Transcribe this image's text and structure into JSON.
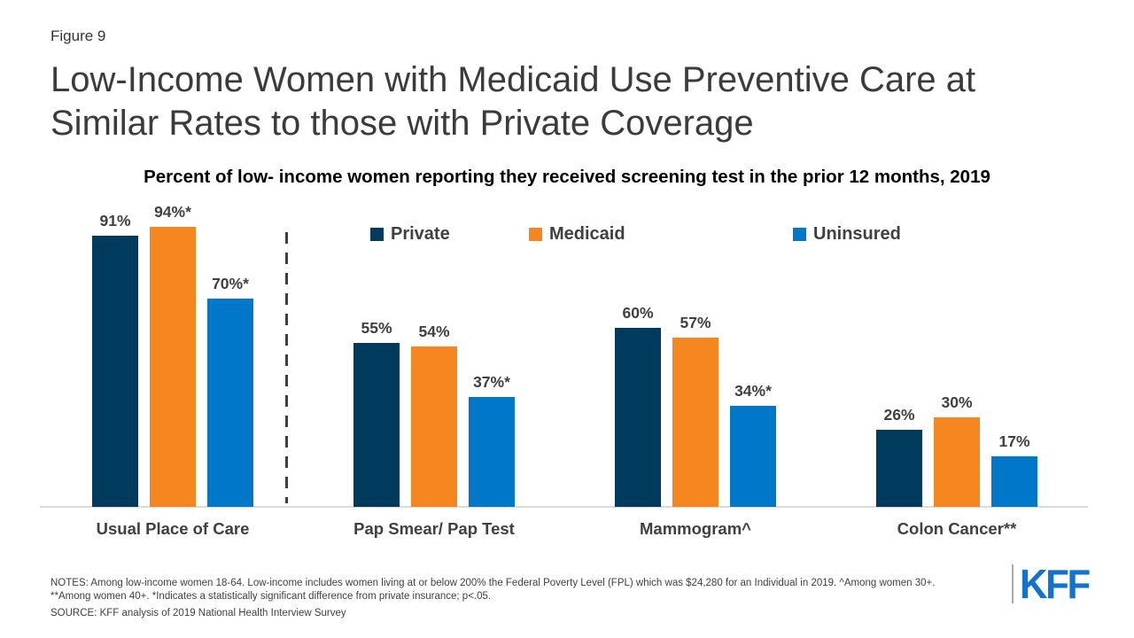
{
  "header": {
    "figure_label": "Figure 9",
    "title_line1": "Low-Income Women with Medicaid Use Preventive Care at",
    "title_line2": "Similar Rates to those with Private Coverage",
    "subtitle": "Percent of low- income women reporting they received screening test in the prior 12 months, 2019"
  },
  "chart_data": {
    "type": "bar",
    "title": "Percent of low- income women reporting they received screening test in the prior 12 months, 2019",
    "categories": [
      "Usual Place of Care",
      "Pap Smear/ Pap Test",
      "Mammogram^",
      "Colon Cancer**"
    ],
    "series": [
      {
        "name": "Private",
        "color": "#003a5d",
        "values": [
          91,
          55,
          60,
          26
        ],
        "labels": [
          "91%",
          "55%",
          "60%",
          "26%"
        ]
      },
      {
        "name": "Medicaid",
        "color": "#f6861f",
        "values": [
          94,
          54,
          57,
          30
        ],
        "labels": [
          "94%*",
          "54%",
          "57%",
          "30%"
        ]
      },
      {
        "name": "Uninsured",
        "color": "#0077c8",
        "values": [
          70,
          37,
          34,
          17
        ],
        "labels": [
          "70%*",
          "37%*",
          "34%*",
          "17%"
        ]
      }
    ],
    "ylim": [
      0,
      100
    ],
    "grid": false,
    "legend_position": "top",
    "value_suffix": "%",
    "annotations": "dashed vertical separator after first category; asterisks mark statistically significant difference from private insurance"
  },
  "footer": {
    "notes_line1": "NOTES: Among low-income women 18-64. Low-income includes women living at or below 200% the Federal Poverty Level (FPL) which was $24,280 for an Individual in 2019.  ^Among women 30+.",
    "notes_line2": "**Among women 40+. *Indicates a statistically significant difference from private insurance; p<.05.",
    "source": "SOURCE: KFF analysis of 2019 National Health Interview Survey",
    "logo_text": "KFF"
  }
}
